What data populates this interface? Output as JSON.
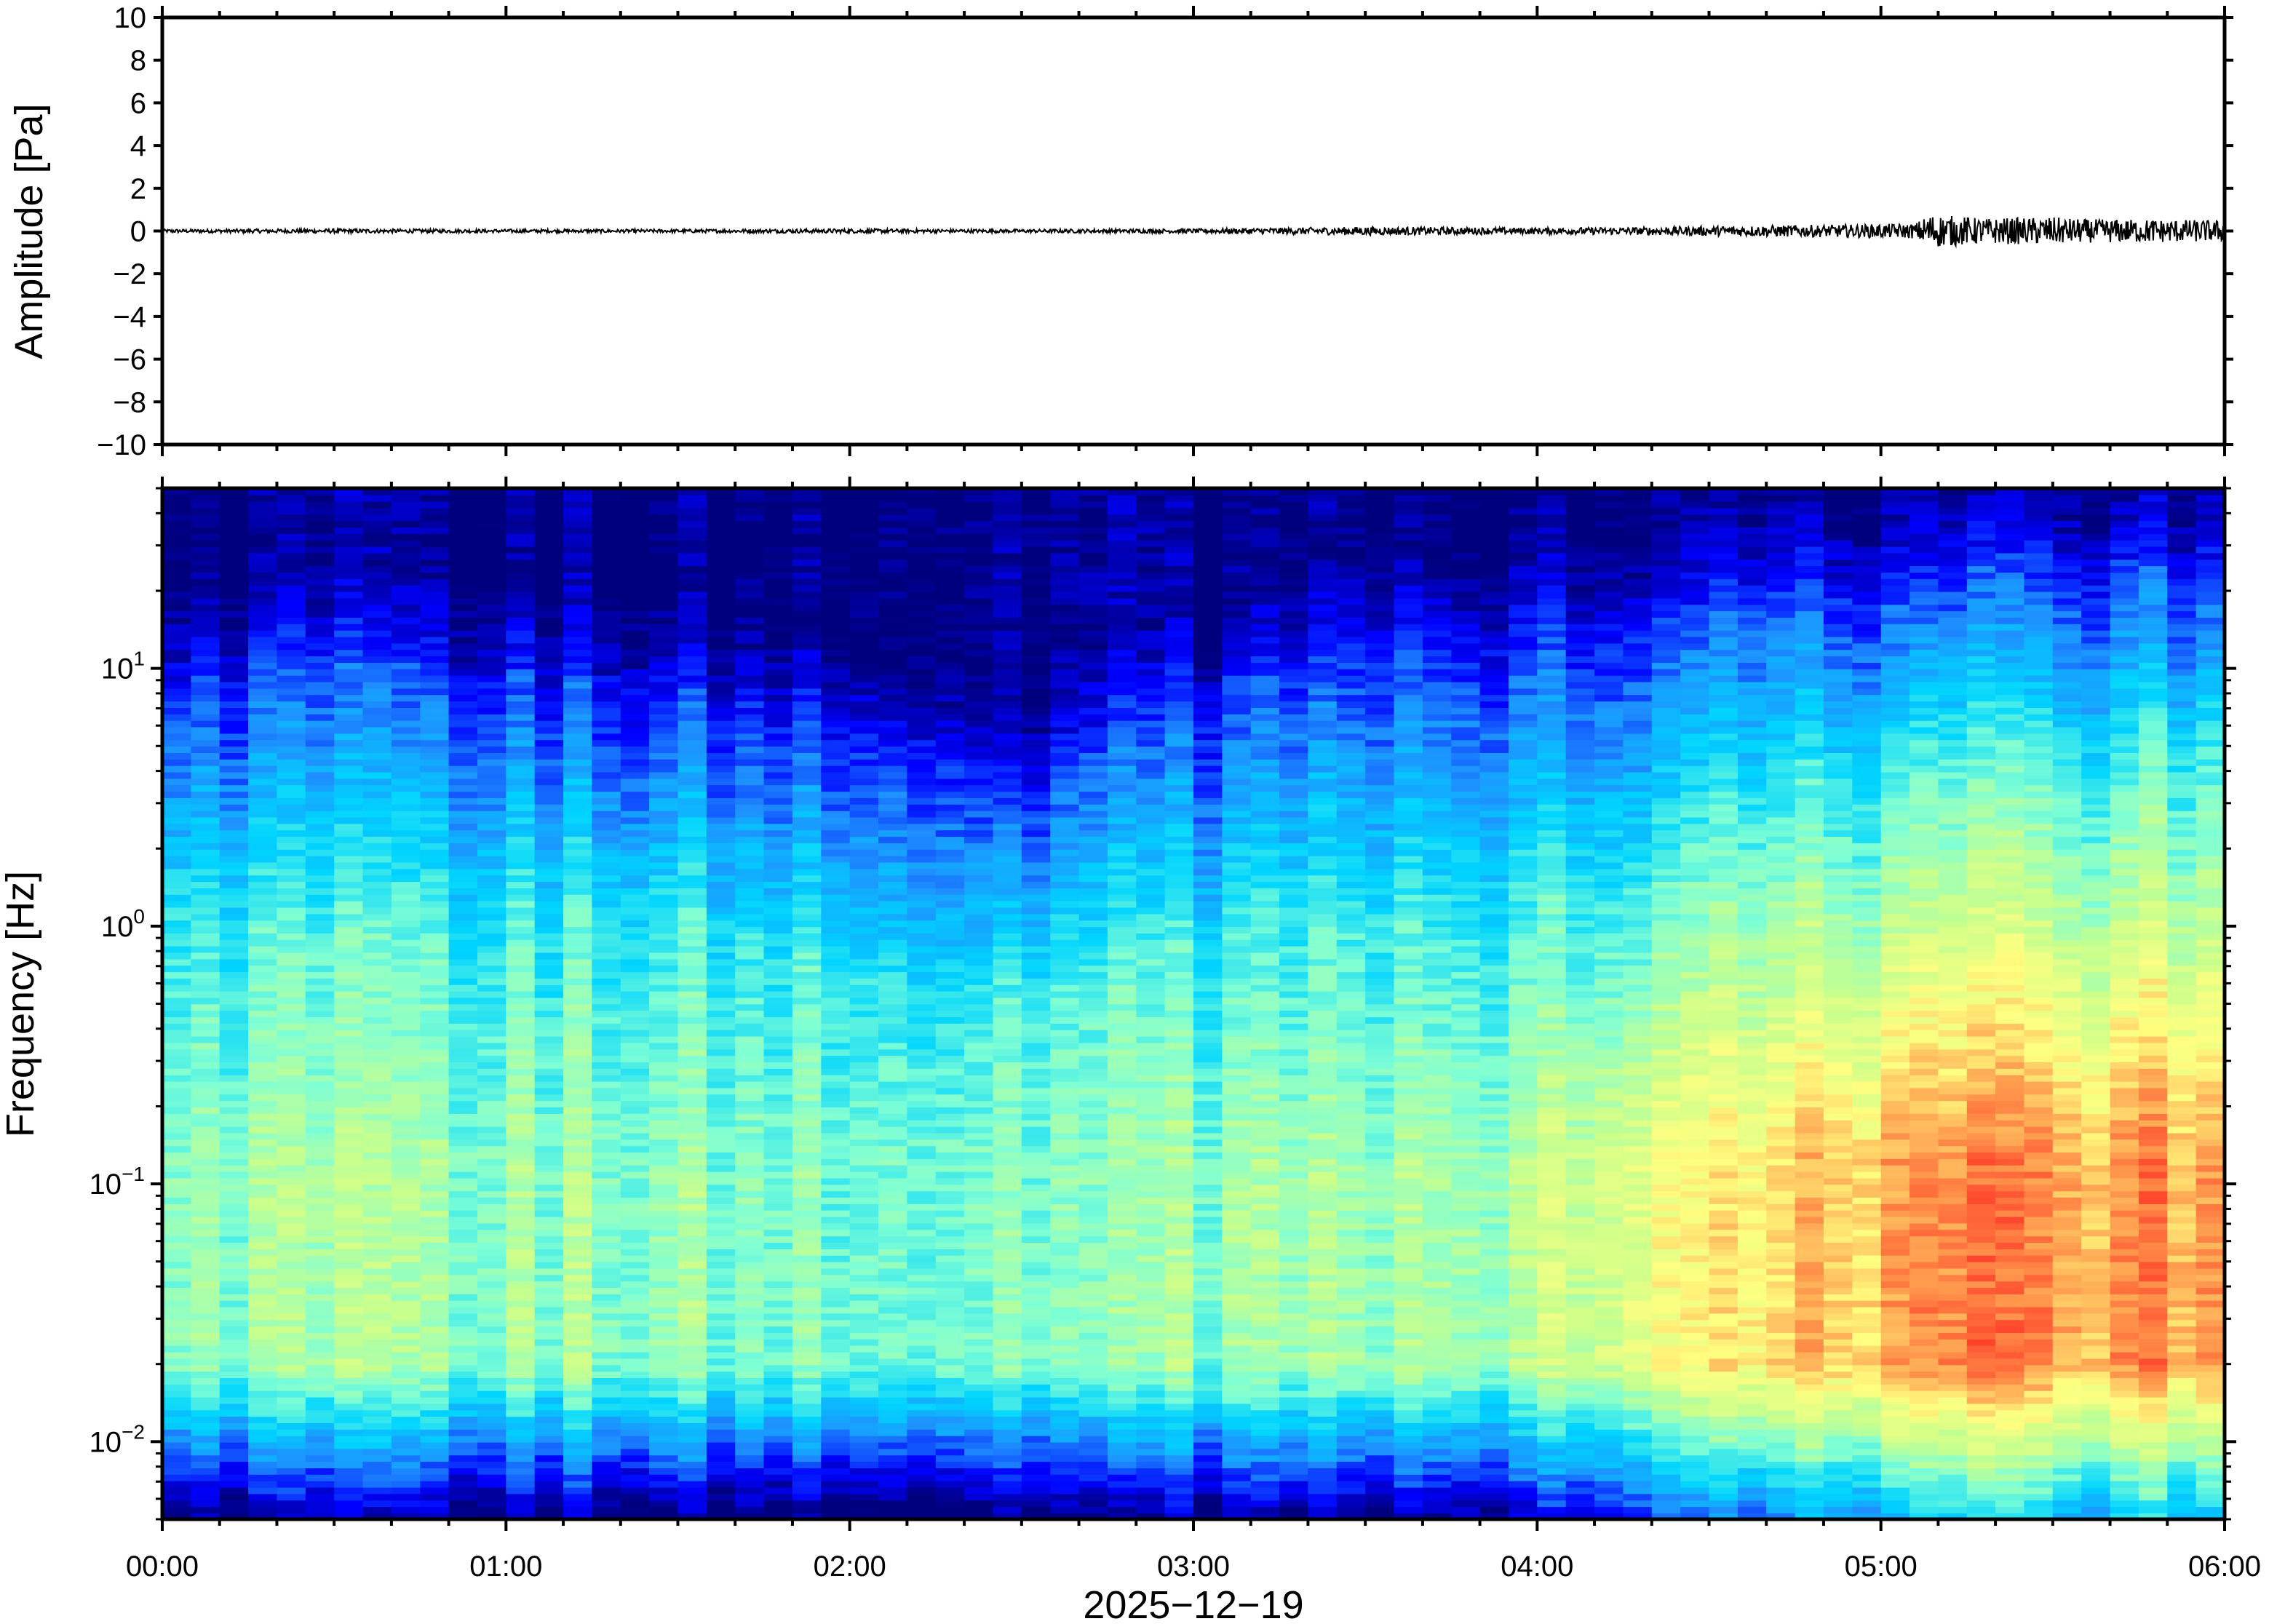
{
  "chart_data": [
    {
      "type": "line",
      "panel": "waveform",
      "ylabel": "Amplitude [Pa]",
      "ylim": [
        -10,
        10
      ],
      "yticks": [
        10,
        8,
        6,
        4,
        2,
        0,
        -2,
        -4,
        -6,
        -8,
        -10
      ],
      "ytick_labels": [
        "10",
        "8",
        "6",
        "4",
        "2",
        "0",
        "−2",
        "−4",
        "−6",
        "−8",
        "−10"
      ],
      "xlim_hours": [
        0,
        6
      ],
      "series": [
        {
          "color": "#000000",
          "envelope_hours": [
            0.0,
            0.5,
            1.0,
            1.5,
            2.0,
            2.5,
            3.0,
            3.5,
            4.0,
            4.3,
            4.6,
            4.9,
            5.1,
            5.14,
            5.3,
            5.5,
            5.6,
            5.8,
            6.0
          ],
          "envelope_amplitude": [
            0.08,
            0.1,
            0.08,
            0.08,
            0.1,
            0.08,
            0.1,
            0.2,
            0.15,
            0.18,
            0.25,
            0.3,
            0.35,
            0.8,
            0.6,
            0.65,
            0.55,
            0.55,
            0.5
          ]
        }
      ]
    },
    {
      "type": "heatmap",
      "panel": "spectrogram",
      "ylabel": "Frequency [Hz]",
      "xlabel": "2025−12−19",
      "yscale": "log",
      "ylim": [
        0.005,
        50
      ],
      "yticks": [
        10,
        1,
        0.1,
        0.01
      ],
      "ytick_labels": [
        {
          "base": "10",
          "exp": "1"
        },
        {
          "base": "10",
          "exp": "0"
        },
        {
          "base": "10",
          "exp": "−1"
        },
        {
          "base": "10",
          "exp": "−2"
        }
      ],
      "xlim_hours": [
        0,
        6
      ],
      "xticks_hours": [
        0,
        1,
        2,
        3,
        4,
        5,
        6
      ],
      "xtick_labels": [
        "00:00",
        "01:00",
        "02:00",
        "03:00",
        "04:00",
        "05:00",
        "06:00"
      ],
      "colormap": "jet",
      "colormap_stops": [
        "#00007f",
        "#0000ff",
        "#1e90ff",
        "#00d4ff",
        "#7fffd4",
        "#c8ff8c",
        "#ffff80",
        "#ffa050",
        "#ff3c28"
      ],
      "time_columns_hours": [
        0.0,
        0.5,
        1.0,
        1.5,
        2.0,
        2.25,
        2.5,
        2.75,
        3.0,
        3.5,
        4.0,
        4.3,
        4.6,
        5.0,
        5.2,
        5.4,
        5.6,
        5.8,
        6.0
      ],
      "blue_ceiling_hz": [
        10,
        12,
        10,
        9,
        6,
        5,
        3,
        6,
        8,
        13,
        14,
        16,
        20,
        22,
        25,
        28,
        27,
        26,
        24
      ],
      "low_energy_floor_hz": [
        1.2,
        1.0,
        1.1,
        1.0,
        0.6,
        0.4,
        0.5,
        0.6,
        0.8,
        1.0,
        1.2,
        1.5,
        2.5,
        3.5,
        5.0,
        5.0,
        4.5,
        4.5,
        4.0
      ],
      "energy_peak_band_hz": [
        0.02,
        0.12
      ],
      "energy_peak_level": [
        0.55,
        0.55,
        0.55,
        0.55,
        0.5,
        0.5,
        0.5,
        0.5,
        0.55,
        0.55,
        0.6,
        0.7,
        0.75,
        0.85,
        0.9,
        0.9,
        0.88,
        0.88,
        0.85
      ]
    }
  ]
}
